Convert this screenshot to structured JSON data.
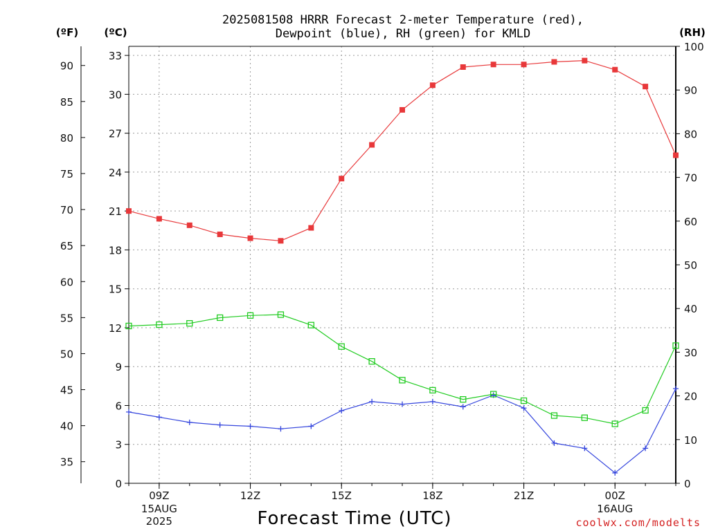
{
  "title_line1": "2025081508 HRRR Forecast 2-meter Temperature (red),",
  "title_line2": "Dewpoint (blue), RH (green) for KMLD",
  "units": {
    "fahrenheit": "(ºF)",
    "celsius": "(ºC)",
    "rh": "(RH)"
  },
  "xlabel": "Forecast Time (UTC)",
  "credit": "coolwx.com/modelts",
  "colors": {
    "temperature": "#e8383a",
    "dewpoint": "#3344dd",
    "rh": "#22cc22",
    "credit": "#d42020",
    "grid": "#9a9a9a"
  },
  "chart_data": {
    "type": "line",
    "title": "2025081508 HRRR Forecast 2-meter Temperature (red), Dewpoint (blue), RH (green) for KMLD",
    "xlabel": "Forecast Time (UTC)",
    "x": [
      "2025-08-15T08Z",
      "2025-08-15T09Z",
      "2025-08-15T10Z",
      "2025-08-15T11Z",
      "2025-08-15T12Z",
      "2025-08-15T13Z",
      "2025-08-15T14Z",
      "2025-08-15T15Z",
      "2025-08-15T16Z",
      "2025-08-15T17Z",
      "2025-08-15T18Z",
      "2025-08-15T19Z",
      "2025-08-15T20Z",
      "2025-08-15T21Z",
      "2025-08-15T22Z",
      "2025-08-15T23Z",
      "2025-08-16T00Z",
      "2025-08-16T01Z",
      "2025-08-16T02Z"
    ],
    "x_ticks": [
      {
        "label": "09Z",
        "sub1": "15AUG",
        "sub2": "2025"
      },
      {
        "label": "12Z",
        "sub1": "",
        "sub2": ""
      },
      {
        "label": "15Z",
        "sub1": "",
        "sub2": ""
      },
      {
        "label": "18Z",
        "sub1": "",
        "sub2": ""
      },
      {
        "label": "21Z",
        "sub1": "",
        "sub2": ""
      },
      {
        "label": "00Z",
        "sub1": "16AUG",
        "sub2": ""
      }
    ],
    "left_celsius_axis": {
      "ylim": [
        0,
        33.7
      ],
      "ticks": [
        "0",
        "3",
        "6",
        "9",
        "12",
        "15",
        "18",
        "21",
        "24",
        "27",
        "30",
        "33"
      ]
    },
    "left_fahrenheit_axis": {
      "ticks": [
        "35",
        "40",
        "45",
        "50",
        "55",
        "60",
        "65",
        "70",
        "75",
        "80",
        "85",
        "90"
      ]
    },
    "right_rh_axis": {
      "ylim": [
        0,
        100
      ],
      "ticks": [
        "0",
        "10",
        "20",
        "30",
        "40",
        "50",
        "60",
        "70",
        "80",
        "90",
        "100"
      ]
    },
    "grid": true,
    "series": [
      {
        "name": "Temperature",
        "axis": "celsius",
        "values": [
          21.0,
          20.4,
          19.9,
          19.2,
          18.9,
          18.7,
          19.7,
          23.5,
          26.1,
          28.8,
          30.7,
          32.1,
          32.3,
          32.3,
          32.5,
          32.6,
          31.9,
          30.6,
          25.3
        ]
      },
      {
        "name": "Dewpoint",
        "axis": "celsius",
        "values": [
          5.5,
          5.1,
          4.7,
          4.5,
          4.4,
          4.2,
          4.4,
          5.6,
          6.3,
          6.1,
          6.3,
          5.9,
          6.8,
          5.8,
          3.1,
          2.7,
          0.8,
          2.7,
          7.3
        ]
      },
      {
        "name": "RH",
        "axis": "rh",
        "values": [
          36.0,
          36.3,
          36.6,
          37.9,
          38.4,
          38.6,
          36.2,
          31.3,
          27.9,
          23.6,
          21.3,
          19.2,
          20.4,
          18.9,
          15.5,
          15.0,
          13.6,
          16.7,
          31.5
        ]
      }
    ]
  }
}
